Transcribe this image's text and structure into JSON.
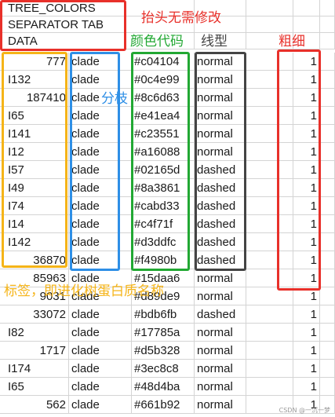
{
  "header_rows": [
    "TREE_COLORS",
    "SEPARATOR TAB",
    "DATA"
  ],
  "rows": [
    {
      "label": "777",
      "type": "clade",
      "color": "#c04104",
      "style": "normal",
      "width": "1",
      "label_numeric": true
    },
    {
      "label": "I132",
      "type": "clade",
      "color": "#0c4e99",
      "style": "normal",
      "width": "1",
      "label_numeric": false
    },
    {
      "label": "187410",
      "type": "clade",
      "color": "#8c6d63",
      "style": "normal",
      "width": "1",
      "label_numeric": true
    },
    {
      "label": "I65",
      "type": "clade",
      "color": "#e41ea4",
      "style": "normal",
      "width": "1",
      "label_numeric": false
    },
    {
      "label": "I141",
      "type": "clade",
      "color": "#c23551",
      "style": "normal",
      "width": "1",
      "label_numeric": false
    },
    {
      "label": "I12",
      "type": "clade",
      "color": "#a16088",
      "style": "normal",
      "width": "1",
      "label_numeric": false
    },
    {
      "label": "I57",
      "type": "clade",
      "color": "#02165d",
      "style": "dashed",
      "width": "1",
      "label_numeric": false
    },
    {
      "label": "I49",
      "type": "clade",
      "color": "#8a3861",
      "style": "dashed",
      "width": "1",
      "label_numeric": false
    },
    {
      "label": "I74",
      "type": "clade",
      "color": "#cabd33",
      "style": "dashed",
      "width": "1",
      "label_numeric": false
    },
    {
      "label": "I14",
      "type": "clade",
      "color": "#c4f71f",
      "style": "dashed",
      "width": "1",
      "label_numeric": false
    },
    {
      "label": "I142",
      "type": "clade",
      "color": "#d3ddfc",
      "style": "dashed",
      "width": "1",
      "label_numeric": false
    },
    {
      "label": "36870",
      "type": "clade",
      "color": "#f4980b",
      "style": "dashed",
      "width": "1",
      "label_numeric": true
    },
    {
      "label": "85963",
      "type": "clade",
      "color": "#15daa6",
      "style": "normal",
      "width": "1",
      "label_numeric": true
    },
    {
      "label": "9031",
      "type": "clade",
      "color": "#d89de9",
      "style": "normal",
      "width": "1",
      "label_numeric": true
    },
    {
      "label": "33072",
      "type": "clade",
      "color": "#bdb6fb",
      "style": "dashed",
      "width": "1",
      "label_numeric": true
    },
    {
      "label": "I82",
      "type": "clade",
      "color": "#17785a",
      "style": "normal",
      "width": "1",
      "label_numeric": false
    },
    {
      "label": "1717",
      "type": "clade",
      "color": "#d5b328",
      "style": "normal",
      "width": "1",
      "label_numeric": true
    },
    {
      "label": "I174",
      "type": "clade",
      "color": "#3ec8c8",
      "style": "normal",
      "width": "1",
      "label_numeric": false
    },
    {
      "label": "I65",
      "type": "clade",
      "color": "#48d4ba",
      "style": "normal",
      "width": "1",
      "label_numeric": false
    },
    {
      "label": "562",
      "type": "clade",
      "color": "#661b92",
      "style": "normal",
      "width": "1",
      "label_numeric": true
    }
  ],
  "annotations": {
    "header_note": "抬头无需修改",
    "color_code": "颜色代码",
    "line_type": "线型",
    "thickness": "粗细",
    "branch": "分枝",
    "label_note": "标签，即进化树蛋白质名称"
  },
  "annotation_colors": {
    "red": "#e8302a",
    "green": "#22a833",
    "gray": "#444444",
    "blue": "#2e8fe6",
    "orange": "#f5b418"
  },
  "watermark": "CSDN @一沉一梦"
}
